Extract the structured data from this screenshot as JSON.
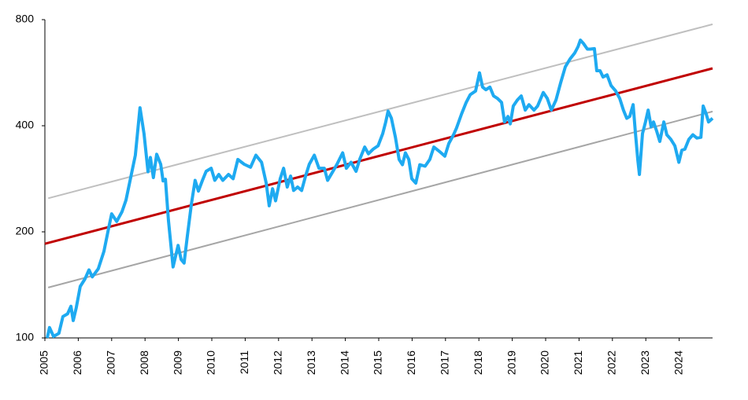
{
  "chart_data": {
    "type": "line",
    "log_y": true,
    "xlim": [
      2005,
      2025
    ],
    "ylim": [
      100,
      800
    ],
    "xticks": [
      2005,
      2006,
      2007,
      2008,
      2009,
      2010,
      2011,
      2012,
      2013,
      2014,
      2015,
      2016,
      2017,
      2018,
      2019,
      2020,
      2021,
      2022,
      2023,
      2024
    ],
    "yticks": [
      100,
      200,
      400,
      800
    ],
    "series": [
      {
        "color": "#bfbfbf",
        "width": 2,
        "x": [
          2005.1,
          2025
        ],
        "values": [
          249,
          776
        ]
      },
      {
        "color": "#a6a6a6",
        "width": 2,
        "x": [
          2005.1,
          2025
        ],
        "values": [
          139,
          439
        ]
      },
      {
        "color": "#c00000",
        "width": 3,
        "x": [
          2005,
          2025
        ],
        "values": [
          185,
          582
        ]
      },
      {
        "color": "#1eaaf1",
        "width": 4,
        "x": [
          2005.07,
          2005.14,
          2005.26,
          2005.42,
          2005.54,
          2005.68,
          2005.78,
          2005.85,
          2005.94,
          2006.06,
          2006.2,
          2006.32,
          2006.42,
          2006.6,
          2006.77,
          2006.91,
          2007.0,
          2007.15,
          2007.31,
          2007.43,
          2007.55,
          2007.71,
          2007.85,
          2007.97,
          2008.09,
          2008.16,
          2008.25,
          2008.35,
          2008.47,
          2008.54,
          2008.61,
          2008.7,
          2008.84,
          2008.99,
          2009.08,
          2009.17,
          2009.27,
          2009.39,
          2009.5,
          2009.6,
          2009.72,
          2009.83,
          2009.98,
          2010.09,
          2010.21,
          2010.33,
          2010.5,
          2010.64,
          2010.78,
          2010.97,
          2011.16,
          2011.32,
          2011.49,
          2011.63,
          2011.72,
          2011.82,
          2011.91,
          2012.05,
          2012.15,
          2012.26,
          2012.36,
          2012.45,
          2012.57,
          2012.69,
          2012.81,
          2012.92,
          2013.07,
          2013.21,
          2013.37,
          2013.47,
          2013.61,
          2013.75,
          2013.92,
          2014.03,
          2014.17,
          2014.32,
          2014.43,
          2014.58,
          2014.69,
          2014.83,
          2014.98,
          2015.12,
          2015.21,
          2015.28,
          2015.38,
          2015.5,
          2015.61,
          2015.71,
          2015.8,
          2015.9,
          2015.99,
          2016.11,
          2016.23,
          2016.39,
          2016.53,
          2016.65,
          2016.82,
          2016.98,
          2017.1,
          2017.24,
          2017.33,
          2017.48,
          2017.62,
          2017.74,
          2017.9,
          2018.02,
          2018.11,
          2018.21,
          2018.33,
          2018.44,
          2018.56,
          2018.68,
          2018.77,
          2018.87,
          2018.94,
          2019.03,
          2019.15,
          2019.27,
          2019.39,
          2019.5,
          2019.65,
          2019.76,
          2019.93,
          2020.05,
          2020.17,
          2020.31,
          2020.45,
          2020.59,
          2020.73,
          2020.87,
          2020.97,
          2021.04,
          2021.13,
          2021.25,
          2021.34,
          2021.46,
          2021.53,
          2021.63,
          2021.72,
          2021.84,
          2021.96,
          2022.1,
          2022.22,
          2022.33,
          2022.43,
          2022.52,
          2022.62,
          2022.69,
          2022.76,
          2022.81,
          2022.9,
          2022.99,
          2023.07,
          2023.16,
          2023.23,
          2023.33,
          2023.42,
          2023.54,
          2023.63,
          2023.75,
          2023.87,
          2023.99,
          2024.08,
          2024.17,
          2024.29,
          2024.41,
          2024.53,
          2024.65,
          2024.72,
          2024.81,
          2024.88,
          2025.0
        ],
        "values": [
          100,
          107,
          101,
          103,
          115,
          117,
          123,
          112,
          122,
          140,
          147,
          156,
          149,
          157,
          176,
          205,
          225,
          214,
          228,
          246,
          279,
          330,
          450,
          380,
          296,
          325,
          285,
          332,
          311,
          279,
          282,
          216,
          159,
          183,
          167,
          163,
          195,
          240,
          280,
          261,
          280,
          297,
          303,
          280,
          291,
          280,
          291,
          283,
          321,
          311,
          305,
          330,
          315,
          275,
          237,
          265,
          245,
          283,
          303,
          268,
          288,
          262,
          268,
          262,
          288,
          311,
          330,
          303,
          303,
          280,
          295,
          311,
          335,
          303,
          315,
          297,
          321,
          348,
          333,
          343,
          351,
          380,
          410,
          440,
          420,
          371,
          321,
          310,
          335,
          321,
          283,
          275,
          310,
          307,
          321,
          348,
          338,
          328,
          356,
          377,
          394,
          432,
          466,
          490,
          502,
          565,
          515,
          506,
          515,
          486,
          478,
          466,
          410,
          425,
          405,
          455,
          473,
          486,
          443,
          459,
          443,
          455,
          497,
          478,
          443,
          473,
          530,
          588,
          619,
          643,
          670,
          700,
          685,
          660,
          660,
          662,
          573,
          573,
          550,
          558,
          520,
          502,
          478,
          443,
          420,
          425,
          459,
          380,
          321,
          291,
          380,
          410,
          443,
          397,
          410,
          385,
          361,
          410,
          377,
          366,
          351,
          315,
          341,
          343,
          366,
          377,
          369,
          371,
          455,
          432,
          410,
          420
        ]
      }
    ]
  }
}
